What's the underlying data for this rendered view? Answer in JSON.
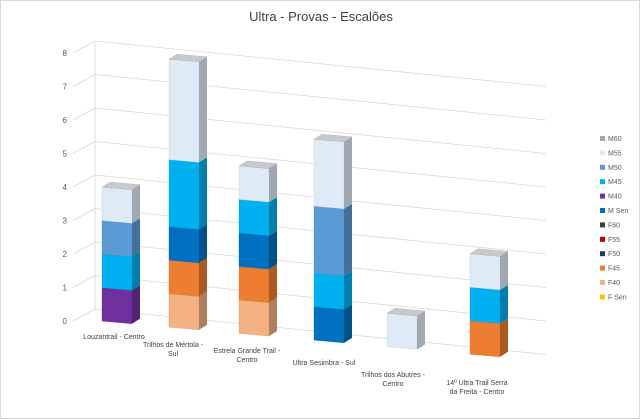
{
  "chart_data": {
    "type": "bar",
    "stacked": true,
    "three_d": true,
    "title": "Ultra - Provas - Escalões",
    "categories": [
      [
        "Louzantrail - Centro"
      ],
      [
        "Trilhos de Mértola -",
        "Sul"
      ],
      [
        "Estrela Grande Trail -",
        "Centro"
      ],
      [
        "Ultra Sesimbra - Sul"
      ],
      [
        "Trilhos dos Abutres -",
        "Centro"
      ],
      [
        "14º Ultra Trail Serra",
        "da Freita - Centro"
      ]
    ],
    "ylim": [
      0,
      8
    ],
    "y_ticks": [
      "0",
      "1",
      "2",
      "3",
      "4",
      "5",
      "6",
      "7",
      "8"
    ],
    "grid": true,
    "legend_position": "right",
    "series": [
      {
        "name": "F Sen",
        "color": "#ffc000",
        "values": [
          0,
          0,
          0,
          0,
          0,
          0
        ]
      },
      {
        "name": "F40",
        "color": "#f4b183",
        "values": [
          0,
          1,
          1,
          0,
          0,
          0
        ]
      },
      {
        "name": "F45",
        "color": "#ed7d31",
        "values": [
          0,
          1,
          1,
          0,
          0,
          1
        ]
      },
      {
        "name": "F50",
        "color": "#1f3864",
        "values": [
          0,
          0,
          0,
          0,
          0,
          0
        ]
      },
      {
        "name": "F55",
        "color": "#c00000",
        "values": [
          0,
          0,
          0,
          0,
          0,
          0
        ]
      },
      {
        "name": "F60",
        "color": "#404040",
        "values": [
          0,
          0,
          0,
          0,
          0,
          0
        ]
      },
      {
        "name": "M Sen",
        "color": "#0070c0",
        "values": [
          0,
          1,
          1,
          1,
          0,
          0
        ]
      },
      {
        "name": "M40",
        "color": "#7030a0",
        "values": [
          1,
          0,
          0,
          0,
          0,
          0
        ]
      },
      {
        "name": "M45",
        "color": "#00b0f0",
        "values": [
          1,
          2,
          1,
          1,
          0,
          1
        ]
      },
      {
        "name": "M50",
        "color": "#5b9bd5",
        "values": [
          1,
          0,
          0,
          2,
          0,
          0
        ]
      },
      {
        "name": "M55",
        "color": "#deebf7",
        "values": [
          1,
          3,
          1,
          2,
          1,
          1
        ]
      },
      {
        "name": "M60",
        "color": "#a5a5a5",
        "values": [
          0,
          0,
          0,
          0,
          0,
          0
        ]
      }
    ]
  }
}
